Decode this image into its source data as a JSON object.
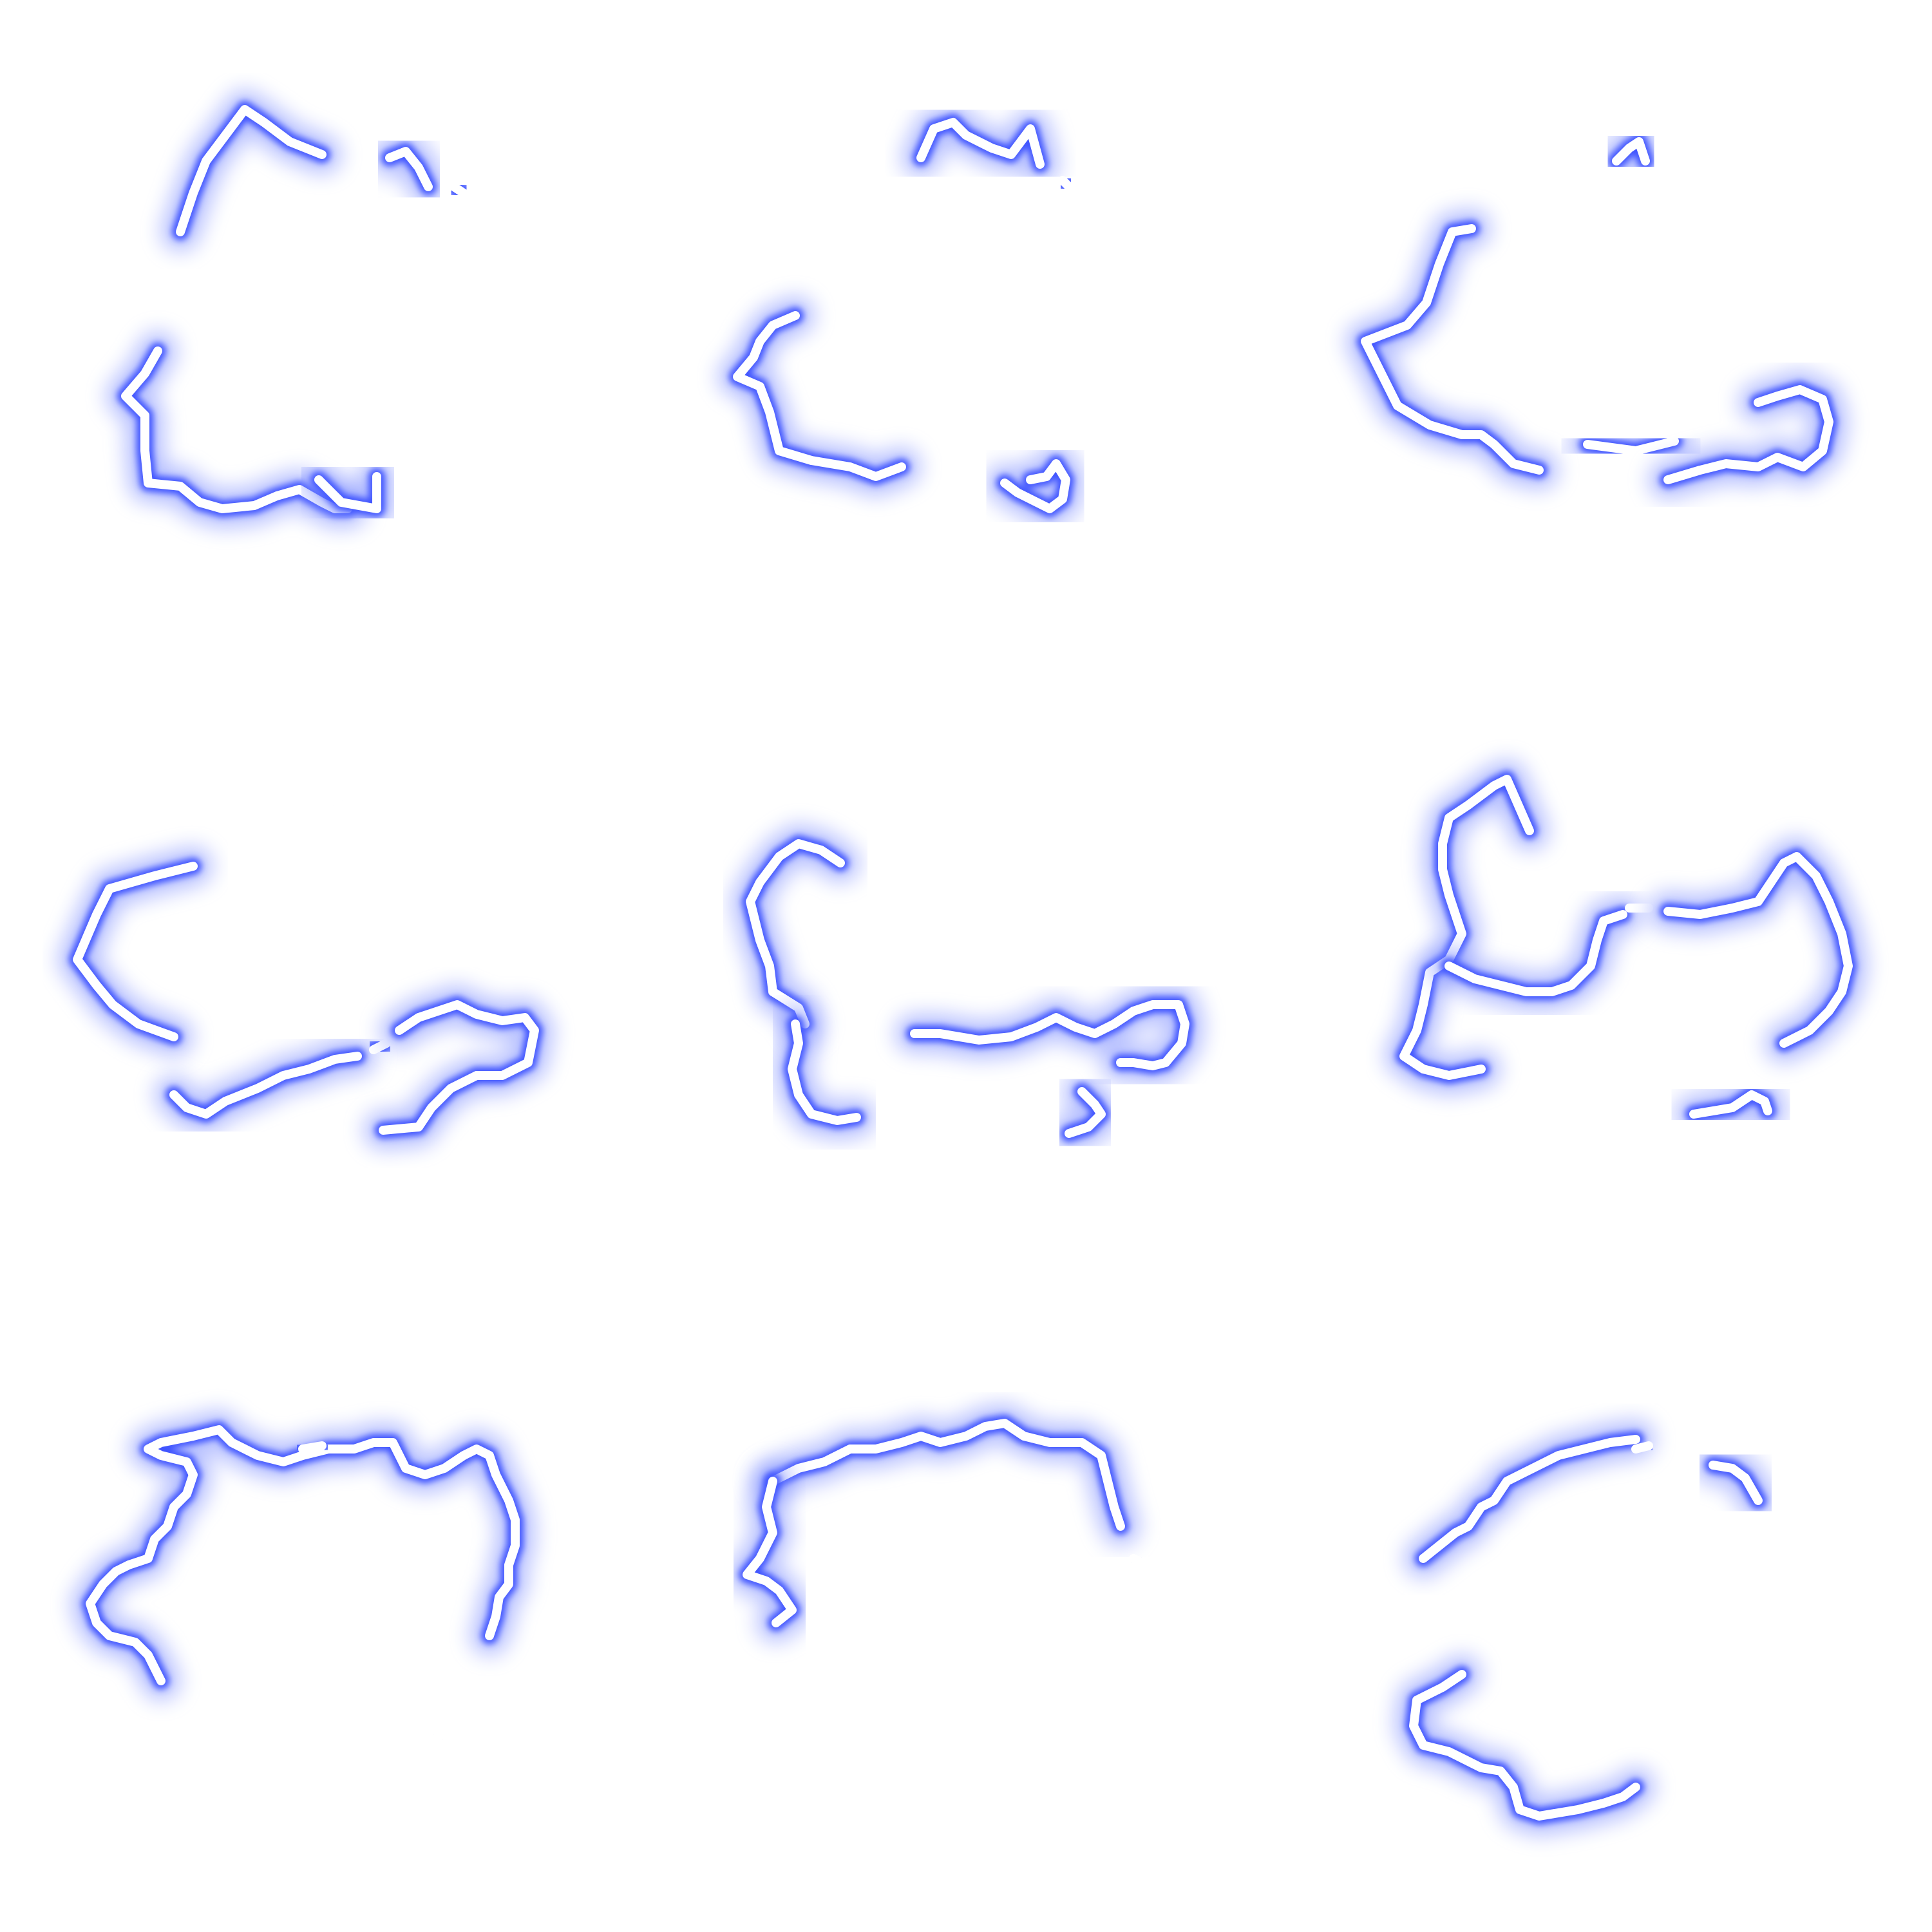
{
  "sheet": {
    "columns": 3,
    "rows": 3,
    "frame_count": 9,
    "background_color": "#ffffff"
  },
  "palette": {
    "glow_outer": "#7b8cff",
    "glow_inner": "#3f55ff",
    "core": "#ffffff"
  }
}
